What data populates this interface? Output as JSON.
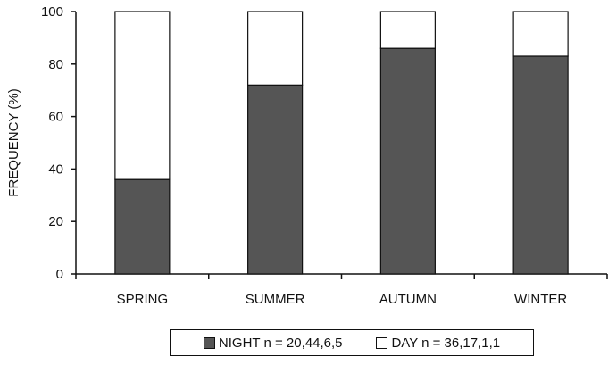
{
  "chart_data": {
    "type": "bar",
    "stacked": true,
    "categories": [
      "SPRING",
      "SUMMER",
      "AUTUMN",
      "WINTER"
    ],
    "series": [
      {
        "name": "NIGHT n = 20,44,6,5",
        "values": [
          36,
          72,
          86,
          83
        ],
        "color": "#555555"
      },
      {
        "name": "DAY n = 36,17,1,1",
        "values": [
          64,
          28,
          14,
          17
        ],
        "color": "#ffffff"
      }
    ],
    "ylabel": "FREQUENCY (%)",
    "xlabel": "",
    "ylim": [
      0,
      100
    ],
    "yticks": [
      0,
      20,
      40,
      60,
      80,
      100
    ],
    "grid": false,
    "legend_position": "bottom"
  }
}
